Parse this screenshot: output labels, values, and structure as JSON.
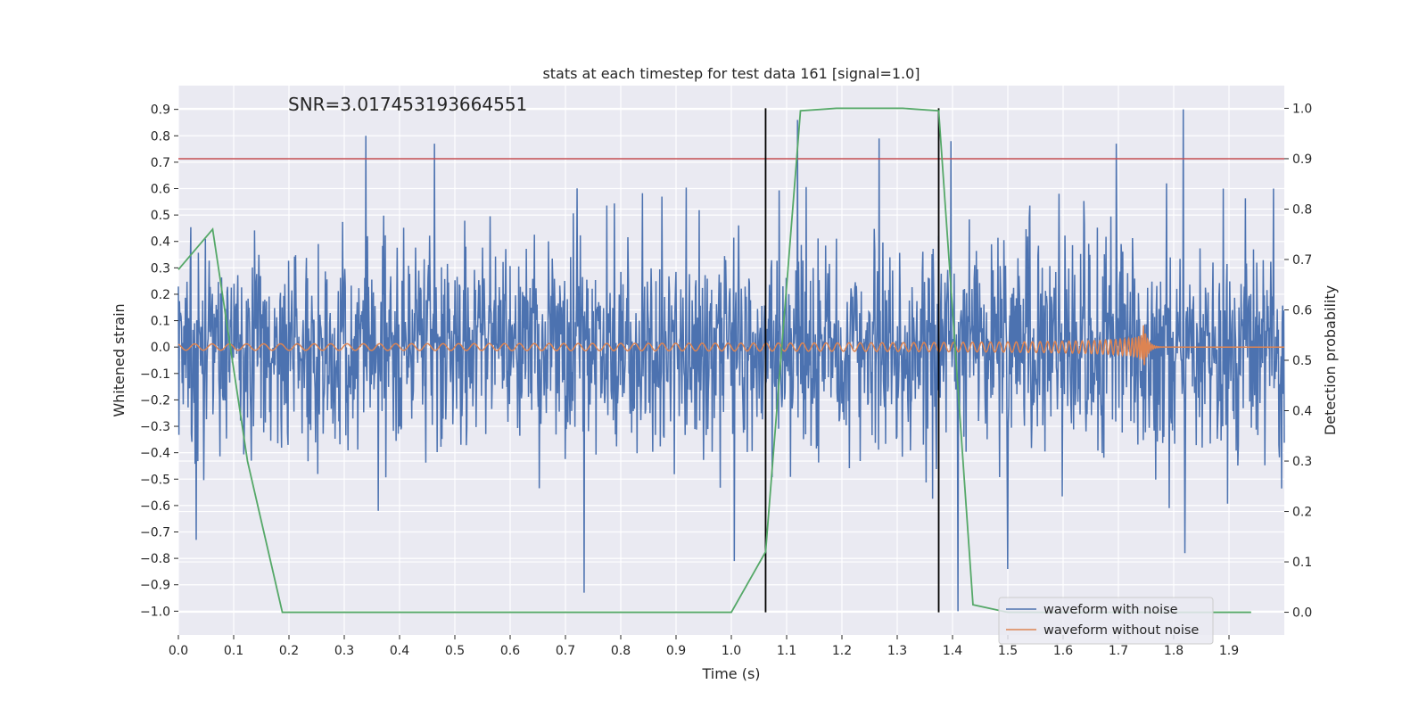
{
  "chart_data": {
    "type": "line",
    "title": "stats at each timestep for test data 161 [signal=1.0]",
    "xlabel": "Time (s)",
    "ylabel": "Whitened strain",
    "y2label": "Detection probability",
    "xlim": [
      0.0,
      2.0
    ],
    "ylim": [
      -1.09,
      0.99
    ],
    "y2lim": [
      -0.045,
      1.045
    ],
    "x_ticks": [
      "0.0",
      "0.1",
      "0.2",
      "0.3",
      "0.4",
      "0.5",
      "0.6",
      "0.7",
      "0.8",
      "0.9",
      "1.0",
      "1.1",
      "1.2",
      "1.3",
      "1.4",
      "1.5",
      "1.6",
      "1.7",
      "1.8",
      "1.9"
    ],
    "y_ticks": [
      "0.9",
      "0.8",
      "0.7",
      "0.6",
      "0.5",
      "0.4",
      "0.3",
      "0.2",
      "0.1",
      "0.0",
      "−0.1",
      "−0.2",
      "−0.3",
      "−0.4",
      "−0.5",
      "−0.6",
      "−0.7",
      "−0.8",
      "−0.9",
      "−1.0"
    ],
    "y2_ticks": [
      "1.0",
      "0.9",
      "0.8",
      "0.7",
      "0.6",
      "0.5",
      "0.4",
      "0.3",
      "0.2",
      "0.1",
      "0.0"
    ],
    "annotation": "SNR=3.017453193664551",
    "grid": true,
    "legend_position": "lower-right",
    "legend": [
      "waveform with noise",
      "waveform without noise"
    ],
    "colors": {
      "noise": "#4c72b0",
      "clean": "#dd8452",
      "probability": "#55a868",
      "threshold": "#c44e52",
      "markers": "#000000",
      "plot_bg": "#eaeaf2"
    },
    "series": [
      {
        "name": "waveform with noise",
        "type": "noise-trace",
        "std": 0.2,
        "samples": 2048,
        "peaks": [
          [
            0.339,
            0.8
          ],
          [
            0.463,
            0.77
          ],
          [
            1.12,
            0.86
          ],
          [
            1.267,
            0.79
          ],
          [
            1.397,
            0.78
          ],
          [
            1.696,
            0.77
          ],
          [
            1.817,
            0.9
          ],
          [
            1.89,
            0.6
          ],
          [
            1.98,
            0.6
          ]
        ],
        "troughs": [
          [
            0.032,
            -0.73
          ],
          [
            0.734,
            -0.93
          ],
          [
            1.005,
            -0.81
          ],
          [
            1.41,
            -1.0
          ],
          [
            1.5,
            -0.84
          ],
          [
            1.82,
            -0.78
          ]
        ]
      },
      {
        "name": "waveform without noise",
        "type": "chirp",
        "merger_time": 1.745,
        "start_amplitude": 0.012,
        "peak_amplitude": 0.1
      },
      {
        "type": "probability",
        "x": [
          0.0,
          0.062,
          0.125,
          0.188,
          0.25,
          0.5,
          0.75,
          0.94,
          1.0,
          1.062,
          1.125,
          1.19,
          1.31,
          1.375,
          1.437,
          1.5,
          1.94
        ],
        "y": [
          0.68,
          0.76,
          0.3,
          0.0,
          0.0,
          0.0,
          0.0,
          0.0,
          0.0,
          0.12,
          0.995,
          1.0,
          1.0,
          0.995,
          0.015,
          0.0,
          0.0
        ]
      }
    ],
    "threshold_y2": 0.9,
    "vertical_lines": [
      1.062,
      1.375
    ]
  }
}
